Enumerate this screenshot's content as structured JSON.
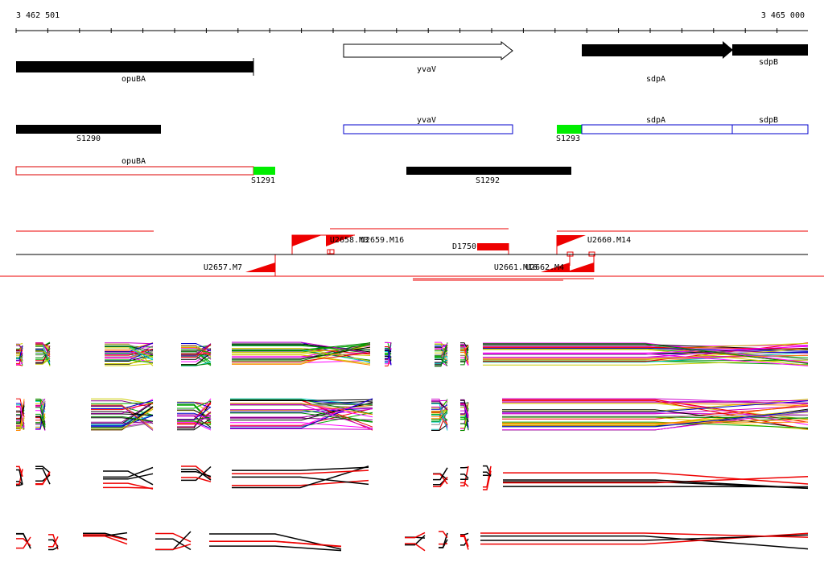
{
  "ruler": {
    "start": "3 462 501",
    "end": "3 465 000"
  },
  "labels": [
    "opuBA",
    "yvaV",
    "sdpA",
    "sdpB",
    "S1290",
    "yvaV",
    "S1293",
    "sdpA",
    "sdpB",
    "opuBA",
    "S1291",
    "S1292",
    "U2658.M3",
    "U2659.M16",
    "D1750",
    "U2660.M14",
    "U2657.M7",
    "U2661.M16",
    "U2662.M4"
  ]
}
